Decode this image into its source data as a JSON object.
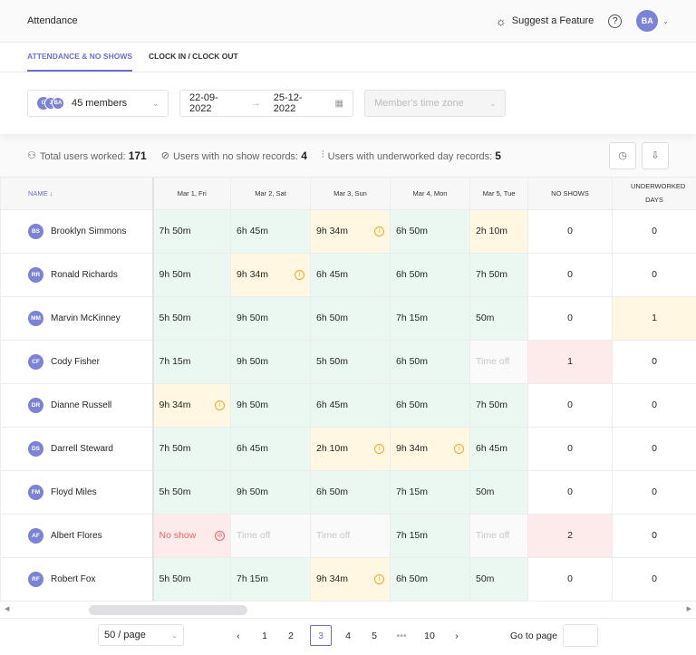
{
  "header": {
    "title": "Attendance",
    "suggest": "Suggest a Feature",
    "help": "?",
    "user_initials": "BA"
  },
  "tabs": [
    {
      "label": "ATTENDANCE & NO SHOWS",
      "active": true
    },
    {
      "label": "CLOCK IN / CLOCK OUT",
      "active": false
    }
  ],
  "filters": {
    "member_avatars": [
      "G",
      "J",
      "BA"
    ],
    "members": "45 members",
    "date_from": "22-09-2022",
    "date_to": "25-12-2022",
    "timezone_placeholder": "Member's time zone"
  },
  "stats": {
    "total_label": "Total users worked:",
    "total": "171",
    "noshow_label": "Users with no show records:",
    "noshow": "4",
    "under_label": "Users with underworked day records:",
    "under": "5"
  },
  "columns": {
    "name": "NAME",
    "days": [
      "Mar 1, Fri",
      "Mar 2, Sat",
      "Mar 3, Sun",
      "Mar 4, Mon",
      "Mar 5, Tue"
    ],
    "no_shows": "NO SHOWS",
    "underworked": "UNDERWORKED DAYS"
  },
  "colors": {
    "accent": "#6a6fd6",
    "ok": "#ebf8f2",
    "warn": "#fff7e1",
    "noshow": "#fdeaea",
    "timeoff": "#fafafa"
  },
  "rows": [
    {
      "initials": "BS",
      "name": "Brooklyn Simmons",
      "cells": [
        [
          "7h 50m",
          "g"
        ],
        [
          "6h 45m",
          "g"
        ],
        [
          "9h 34m",
          "y"
        ],
        [
          "6h 50m",
          "g"
        ],
        [
          "2h 10m",
          "y"
        ]
      ],
      "no_shows": "0",
      "underworked": "0"
    },
    {
      "initials": "RR",
      "name": "Ronald Richards",
      "cells": [
        [
          "9h 50m",
          "g"
        ],
        [
          "9h 34m",
          "y"
        ],
        [
          "6h 45m",
          "g"
        ],
        [
          "6h 50m",
          "g"
        ],
        [
          "7h 50m",
          "g"
        ]
      ],
      "no_shows": "0",
      "underworked": "0"
    },
    {
      "initials": "MM",
      "name": "Marvin McKinney",
      "cells": [
        [
          "5h 50m",
          "g"
        ],
        [
          "9h 50m",
          "g"
        ],
        [
          "6h 50m",
          "g"
        ],
        [
          "7h 15m",
          "g"
        ],
        [
          "50m",
          "g"
        ]
      ],
      "no_shows": "0",
      "underworked": "1"
    },
    {
      "initials": "CF",
      "name": "Cody Fisher",
      "cells": [
        [
          "7h 15m",
          "g"
        ],
        [
          "9h 50m",
          "g"
        ],
        [
          "5h 50m",
          "g"
        ],
        [
          "6h 50m",
          "g"
        ],
        [
          "Time off",
          "o"
        ]
      ],
      "no_shows": "1",
      "underworked": "0"
    },
    {
      "initials": "DR",
      "name": "Dianne Russell",
      "cells": [
        [
          "9h 34m",
          "y"
        ],
        [
          "9h 50m",
          "g"
        ],
        [
          "6h 45m",
          "g"
        ],
        [
          "6h 50m",
          "g"
        ],
        [
          "7h 50m",
          "g"
        ]
      ],
      "no_shows": "0",
      "underworked": "0"
    },
    {
      "initials": "DS",
      "name": "Darrell Steward",
      "cells": [
        [
          "7h 50m",
          "g"
        ],
        [
          "6h 45m",
          "g"
        ],
        [
          "2h 10m",
          "y"
        ],
        [
          "9h 34m",
          "y"
        ],
        [
          "6h 45m",
          "g"
        ]
      ],
      "no_shows": "0",
      "underworked": "0"
    },
    {
      "initials": "FM",
      "name": "Floyd Miles",
      "cells": [
        [
          "5h 50m",
          "g"
        ],
        [
          "9h 50m",
          "g"
        ],
        [
          "6h 50m",
          "g"
        ],
        [
          "7h 15m",
          "g"
        ],
        [
          "50m",
          "g"
        ]
      ],
      "no_shows": "0",
      "underworked": "0"
    },
    {
      "initials": "AF",
      "name": "Albert Flores",
      "cells": [
        [
          "No show",
          "r"
        ],
        [
          "Time off",
          "o"
        ],
        [
          "Time off",
          "o"
        ],
        [
          "7h 15m",
          "g"
        ],
        [
          "Time off",
          "o"
        ]
      ],
      "no_shows": "2",
      "underworked": "0"
    },
    {
      "initials": "RF",
      "name": "Robert Fox",
      "cells": [
        [
          "5h 50m",
          "g"
        ],
        [
          "7h 15m",
          "g"
        ],
        [
          "9h 34m",
          "y"
        ],
        [
          "6h 50m",
          "g"
        ],
        [
          "50m",
          "g"
        ]
      ],
      "no_shows": "0",
      "underworked": "0"
    }
  ],
  "pagination": {
    "page_size": "50 / page",
    "pages": [
      "1",
      "2",
      "3",
      "4",
      "5",
      "•••",
      "10"
    ],
    "current": "3",
    "goto_label": "Go to page"
  }
}
